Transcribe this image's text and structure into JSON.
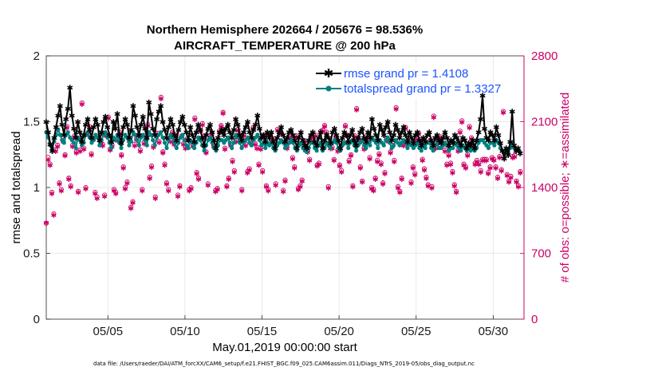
{
  "chart_data": {
    "type": "line",
    "title_line1": "Northern Hemisphere 202664 / 205676 = 98.536%",
    "title_line2": "AIRCRAFT_TEMPERATURE @ 200 hPa",
    "xlabel": "May.01,2019 00:00:00 start",
    "ylabel_left": "rmse and totalspread",
    "ylabel_right": "# of obs: o=possible; ∗=assimilated",
    "footnote": "data file: /Users/raeder/DAI/ATM_forcXX/CAM6_setup/f.e21.FHIST_BGC.f09_025.CAM6assim.011/Diags_NTrS_2019-05/obs_diag_output.nc",
    "x_start_day": 1,
    "x_end_day": 32,
    "x_ticks": [
      {
        "day": 5,
        "label": "05/05"
      },
      {
        "day": 10,
        "label": "05/10"
      },
      {
        "day": 15,
        "label": "05/15"
      },
      {
        "day": 20,
        "label": "05/20"
      },
      {
        "day": 25,
        "label": "05/25"
      },
      {
        "day": 30,
        "label": "05/30"
      }
    ],
    "ylim_left": [
      0,
      2
    ],
    "yticks_left": [
      "0",
      "0.5",
      "1",
      "1.5",
      "2"
    ],
    "ylim_right": [
      0,
      2800
    ],
    "yticks_right": [
      "0",
      "700",
      "1400",
      "2100",
      "2800"
    ],
    "grid": true,
    "legend_position": "top-right",
    "series": [
      {
        "name": "rmse grand pr = 1.4108",
        "color": "#000000",
        "axis": "left",
        "marker": "star",
        "values": [
          1.5,
          1.42,
          1.33,
          1.28,
          1.38,
          1.46,
          1.55,
          1.62,
          1.48,
          1.4,
          1.52,
          1.6,
          1.76,
          1.55,
          1.45,
          1.38,
          1.5,
          1.42,
          1.35,
          1.4,
          1.48,
          1.52,
          1.44,
          1.38,
          1.46,
          1.52,
          1.48,
          1.36,
          1.42,
          1.5,
          1.54,
          1.46,
          1.4,
          1.35,
          1.5,
          1.45,
          1.56,
          1.4,
          1.34,
          1.46,
          1.52,
          1.48,
          1.38,
          1.44,
          1.62,
          1.55,
          1.46,
          1.4,
          1.48,
          1.54,
          1.45,
          1.38,
          1.65,
          1.56,
          1.45,
          1.4,
          1.52,
          1.58,
          1.62,
          1.5,
          1.44,
          1.38,
          1.46,
          1.52,
          1.48,
          1.4,
          1.36,
          1.44,
          1.5,
          1.54,
          1.48,
          1.42,
          1.36,
          1.46,
          1.4,
          1.35,
          1.42,
          1.48,
          1.44,
          1.38,
          1.32,
          1.4,
          1.45,
          1.48,
          1.42,
          1.36,
          1.3,
          1.38,
          1.42,
          1.44,
          1.4,
          1.45,
          1.48,
          1.42,
          1.38,
          1.44,
          1.52,
          1.48,
          1.4,
          1.36,
          1.42,
          1.46,
          1.5,
          1.42,
          1.38,
          1.44,
          1.48,
          1.55,
          1.45,
          1.38,
          1.4,
          1.35,
          1.42,
          1.38,
          1.42,
          1.35,
          1.3,
          1.38,
          1.42,
          1.46,
          1.4,
          1.35,
          1.38,
          1.42,
          1.44,
          1.4,
          1.36,
          1.3,
          1.38,
          1.42,
          1.36,
          1.32,
          1.3,
          1.36,
          1.4,
          1.42,
          1.35,
          1.32,
          1.38,
          1.42,
          1.3,
          1.36,
          1.4,
          1.38,
          1.34,
          1.42,
          1.45,
          1.4,
          1.36,
          1.3,
          1.38,
          1.42,
          1.4,
          1.35,
          1.4,
          1.44,
          1.36,
          1.32,
          1.38,
          1.42,
          1.45,
          1.38,
          1.35,
          1.42,
          1.38,
          1.52,
          1.45,
          1.4,
          1.36,
          1.48,
          1.44,
          1.4,
          1.46,
          1.5,
          1.42,
          1.36,
          1.4,
          1.48,
          1.44,
          1.38,
          1.42,
          1.46,
          1.4,
          1.35,
          1.42,
          1.38,
          1.34,
          1.4,
          1.42,
          1.36,
          1.32,
          1.38,
          1.35,
          1.4,
          1.42,
          1.36,
          1.32,
          1.38,
          1.4,
          1.36,
          1.34,
          1.38,
          1.42,
          1.38,
          1.32,
          1.36,
          1.34,
          1.4,
          1.38,
          1.35,
          1.32,
          1.38,
          1.36,
          1.3,
          1.34,
          1.32,
          1.36,
          1.3,
          1.36,
          1.42,
          1.52,
          1.7,
          1.45,
          1.38,
          1.36,
          1.42,
          1.4,
          1.36,
          1.46,
          1.4,
          1.34,
          1.28,
          1.22,
          1.3,
          1.25,
          1.35,
          1.58,
          1.32,
          1.28,
          1.3,
          1.26
        ]
      },
      {
        "name": "totalspread grand pr = 1.3327",
        "color": "#008080",
        "axis": "left",
        "marker": "dot",
        "values": [
          1.42,
          1.38,
          1.32,
          1.3,
          1.35,
          1.4,
          1.44,
          1.4,
          1.36,
          1.34,
          1.4,
          1.42,
          1.38,
          1.36,
          1.34,
          1.3,
          1.38,
          1.36,
          1.32,
          1.34,
          1.4,
          1.42,
          1.38,
          1.34,
          1.36,
          1.4,
          1.38,
          1.32,
          1.36,
          1.4,
          1.42,
          1.38,
          1.34,
          1.3,
          1.38,
          1.36,
          1.4,
          1.34,
          1.3,
          1.36,
          1.4,
          1.38,
          1.32,
          1.35,
          1.42,
          1.4,
          1.36,
          1.32,
          1.38,
          1.4,
          1.36,
          1.32,
          1.42,
          1.4,
          1.36,
          1.32,
          1.38,
          1.4,
          1.42,
          1.38,
          1.34,
          1.3,
          1.36,
          1.4,
          1.38,
          1.34,
          1.3,
          1.34,
          1.38,
          1.4,
          1.36,
          1.32,
          1.3,
          1.36,
          1.34,
          1.3,
          1.34,
          1.38,
          1.36,
          1.32,
          1.28,
          1.32,
          1.36,
          1.38,
          1.34,
          1.3,
          1.28,
          1.32,
          1.36,
          1.36,
          1.34,
          1.36,
          1.38,
          1.34,
          1.3,
          1.34,
          1.4,
          1.38,
          1.34,
          1.3,
          1.34,
          1.36,
          1.38,
          1.34,
          1.32,
          1.36,
          1.38,
          1.4,
          1.36,
          1.32,
          1.34,
          1.3,
          1.34,
          1.32,
          1.34,
          1.3,
          1.28,
          1.32,
          1.34,
          1.36,
          1.34,
          1.3,
          1.32,
          1.34,
          1.36,
          1.34,
          1.3,
          1.28,
          1.32,
          1.34,
          1.3,
          1.28,
          1.27,
          1.3,
          1.34,
          1.34,
          1.3,
          1.28,
          1.32,
          1.34,
          1.28,
          1.3,
          1.34,
          1.32,
          1.3,
          1.34,
          1.36,
          1.34,
          1.3,
          1.28,
          1.32,
          1.34,
          1.34,
          1.3,
          1.34,
          1.36,
          1.32,
          1.28,
          1.32,
          1.34,
          1.36,
          1.32,
          1.3,
          1.34,
          1.32,
          1.38,
          1.36,
          1.34,
          1.3,
          1.36,
          1.34,
          1.32,
          1.36,
          1.38,
          1.34,
          1.3,
          1.32,
          1.36,
          1.34,
          1.32,
          1.34,
          1.36,
          1.34,
          1.3,
          1.34,
          1.32,
          1.3,
          1.32,
          1.34,
          1.3,
          1.28,
          1.32,
          1.3,
          1.34,
          1.34,
          1.3,
          1.28,
          1.32,
          1.34,
          1.3,
          1.3,
          1.32,
          1.34,
          1.32,
          1.28,
          1.3,
          1.3,
          1.34,
          1.32,
          1.3,
          1.28,
          1.32,
          1.3,
          1.28,
          1.3,
          1.28,
          1.3,
          1.28,
          1.3,
          1.34,
          1.36,
          1.36,
          1.34,
          1.32,
          1.3,
          1.34,
          1.34,
          1.32,
          1.36,
          1.34,
          1.3,
          1.28,
          1.26,
          1.28,
          1.27,
          1.3,
          1.34,
          1.3,
          1.28,
          1.28,
          1.27
        ]
      },
      {
        "name": "possible",
        "color": "#cc0066",
        "axis": "right",
        "marker": "circle",
        "values": [
          1020,
          1720,
          1650,
          1350,
          1120,
          1800,
          1850,
          1450,
          1380,
          1900,
          1750,
          2050,
          1500,
          1420,
          1850,
          1950,
          1780,
          1360,
          1800,
          2300,
          1820,
          1400,
          1980,
          2050,
          1760,
          1920,
          1350,
          1300,
          1950,
          1880,
          1860,
          1320,
          1960,
          2150,
          1810,
          1850,
          1380,
          1350,
          1910,
          1990,
          1750,
          1620,
          1400,
          1460,
          1910,
          1190,
          1250,
          1860,
          1920,
          1960,
          1800,
          1380,
          1880,
          1960,
          2070,
          1510,
          1630,
          1840,
          1300,
          1980,
          1890,
          2360,
          1780,
          1650,
          1450,
          1380,
          1900,
          1990,
          1870,
          1960,
          1320,
          1420,
          1950,
          1870,
          1830,
          1920,
          1380,
          1400,
          1850,
          2140,
          1560,
          1500,
          2010,
          2080,
          1950,
          1780,
          1440,
          1950,
          1980,
          1850,
          1370,
          1390,
          2000,
          2060,
          2200,
          1820,
          1420,
          1500,
          1860,
          1690,
          1580,
          1900,
          2020,
          1960,
          1380,
          1960,
          1860,
          1570,
          1600,
          1880,
          2040,
          1870,
          1830,
          1650,
          1820,
          1580,
          1960,
          1420,
          1380,
          1970,
          1900,
          1920,
          1440,
          2020,
          1980,
          1980,
          1370,
          1480,
          1830,
          1890,
          1940,
          1720,
          1620,
          1950,
          1390,
          1420,
          1480,
          1900,
          1860,
          1790,
          1700,
          1940,
          1900,
          1960,
          1640,
          1660,
          2000,
          2010,
          2060,
          1990,
          1410,
          1830,
          1830,
          1700,
          1940,
          1800,
          1640,
          1580,
          1880,
          2060,
          1960,
          1690,
          1750,
          1420,
          1950,
          2240,
          1920,
          1620,
          1470,
          1820,
          1940,
          1900,
          1720,
          1400,
          1380,
          1500,
          1690,
          1760,
          1660,
          1450,
          1560,
          1920,
          1900,
          1780,
          1850,
          1690,
          2250,
          1410,
          1360,
          1500,
          1860,
          2040,
          1900,
          1880,
          1460,
          1620,
          1550,
          1920,
          1980,
          1910,
          1700,
          1600,
          1510,
          1430,
          1900,
          1410,
          2160,
          1830,
          1920,
          1890,
          1940,
          1870,
          1800,
          1650,
          1750,
          1660,
          1570,
          1430,
          1360,
          1800,
          2000,
          2110,
          1650,
          1620,
          1750,
          2050,
          1930,
          1850,
          1660,
          1690,
          1660,
          1580,
          1700,
          1700,
          1700,
          1560,
          1620,
          1720,
          1700,
          1620,
          1510,
          1730,
          1590,
          2210,
          1790,
          1540,
          1470,
          1520,
          1730,
          1740,
          1470,
          1420,
          1570
        ]
      },
      {
        "name": "assimilated",
        "color": "#cc0066",
        "axis": "right",
        "marker": "asterisk",
        "values": [
          1030,
          1700,
          1640,
          1340,
          1110,
          1790,
          1840,
          1440,
          1370,
          1890,
          1740,
          2040,
          1490,
          1410,
          1840,
          1940,
          1770,
          1350,
          1790,
          2290,
          1810,
          1390,
          1970,
          2040,
          1750,
          1910,
          1340,
          1290,
          1940,
          1870,
          1850,
          1310,
          1950,
          2140,
          1800,
          1840,
          1370,
          1340,
          1900,
          1980,
          1740,
          1610,
          1390,
          1450,
          1900,
          1180,
          1240,
          1850,
          1910,
          1950,
          1790,
          1370,
          1870,
          1950,
          2060,
          1500,
          1620,
          1830,
          1290,
          1970,
          1880,
          2350,
          1770,
          1640,
          1440,
          1370,
          1890,
          1980,
          1860,
          1950,
          1310,
          1410,
          1940,
          1860,
          1820,
          1910,
          1370,
          1390,
          1840,
          2130,
          1550,
          1490,
          2000,
          2070,
          1940,
          1770,
          1430,
          1940,
          1970,
          1840,
          1360,
          1380,
          1990,
          2050,
          2190,
          1810,
          1410,
          1490,
          1850,
          1680,
          1570,
          1890,
          2010,
          1950,
          1370,
          1950,
          1850,
          1560,
          1590,
          1870,
          2030,
          1860,
          1820,
          1640,
          1810,
          1570,
          1950,
          1410,
          1370,
          1960,
          1890,
          1910,
          1430,
          2010,
          1970,
          1970,
          1360,
          1470,
          1820,
          1880,
          1930,
          1710,
          1610,
          1940,
          1380,
          1410,
          1470,
          1890,
          1850,
          1780,
          1690,
          1930,
          1890,
          1950,
          1630,
          1650,
          1990,
          2000,
          2050,
          1980,
          1400,
          1820,
          1820,
          1690,
          1930,
          1790,
          1630,
          1570,
          1870,
          2050,
          1950,
          1680,
          1740,
          1410,
          1940,
          2230,
          1910,
          1610,
          1460,
          1810,
          1930,
          1890,
          1710,
          1390,
          1370,
          1490,
          1680,
          1750,
          1650,
          1440,
          1550,
          1910,
          1890,
          1770,
          1840,
          1680,
          2240,
          1400,
          1350,
          1490,
          1850,
          2030,
          1890,
          1870,
          1450,
          1610,
          1540,
          1910,
          1970,
          1900,
          1690,
          1590,
          1500,
          1420,
          1890,
          1400,
          2150,
          1820,
          1910,
          1880,
          1930,
          1860,
          1790,
          1640,
          1740,
          1650,
          1560,
          1420,
          1350,
          1790,
          1990,
          2100,
          1640,
          1610,
          1740,
          2040,
          1920,
          1840,
          1650,
          1680,
          1650,
          1570,
          1690,
          1690,
          1690,
          1550,
          1610,
          1710,
          1690,
          1610,
          1500,
          1720,
          1580,
          2200,
          1780,
          1530,
          1460,
          1510,
          1720,
          1730,
          1460,
          1410,
          1560
        ]
      }
    ]
  }
}
